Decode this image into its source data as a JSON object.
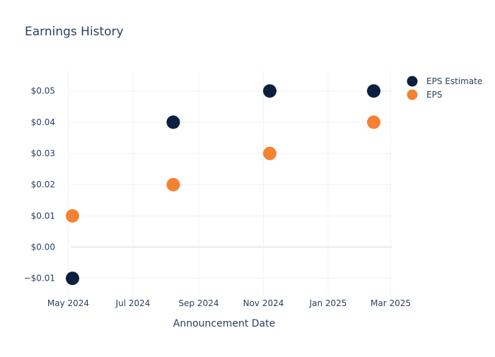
{
  "chart_data": {
    "type": "scatter",
    "title": "Earnings History",
    "xlabel": "Announcement Date",
    "ylabel": "",
    "x_ticks": [
      {
        "date": "2024-05-01",
        "label": "May 2024"
      },
      {
        "date": "2024-07-01",
        "label": "Jul 2024"
      },
      {
        "date": "2024-09-01",
        "label": "Sep 2024"
      },
      {
        "date": "2024-11-01",
        "label": "Nov 2024"
      },
      {
        "date": "2025-01-01",
        "label": "Jan 2025"
      },
      {
        "date": "2025-03-01",
        "label": "Mar 2025"
      }
    ],
    "xlim": [
      "2024-04-20",
      "2025-03-06"
    ],
    "y_ticks": [
      {
        "value": -0.01,
        "label": "−$0.01"
      },
      {
        "value": 0.0,
        "label": "$0.00"
      },
      {
        "value": 0.01,
        "label": "$0.01"
      },
      {
        "value": 0.02,
        "label": "$0.02"
      },
      {
        "value": 0.03,
        "label": "$0.03"
      },
      {
        "value": 0.04,
        "label": "$0.04"
      },
      {
        "value": 0.05,
        "label": "$0.05"
      }
    ],
    "ylim": [
      -0.0155,
      0.0565
    ],
    "grid": true,
    "legend_position": "top-right",
    "series": [
      {
        "name": "EPS Estimate",
        "color": "#0b1f3f",
        "points": [
          {
            "x": "2024-05-05",
            "y": -0.01
          },
          {
            "x": "2024-08-08",
            "y": 0.04
          },
          {
            "x": "2024-11-07",
            "y": 0.05
          },
          {
            "x": "2025-02-13",
            "y": 0.05
          }
        ]
      },
      {
        "name": "EPS",
        "color": "#f58233",
        "points": [
          {
            "x": "2024-05-05",
            "y": 0.01
          },
          {
            "x": "2024-08-08",
            "y": 0.02
          },
          {
            "x": "2024-11-07",
            "y": 0.03
          },
          {
            "x": "2025-02-13",
            "y": 0.04
          }
        ]
      }
    ]
  }
}
